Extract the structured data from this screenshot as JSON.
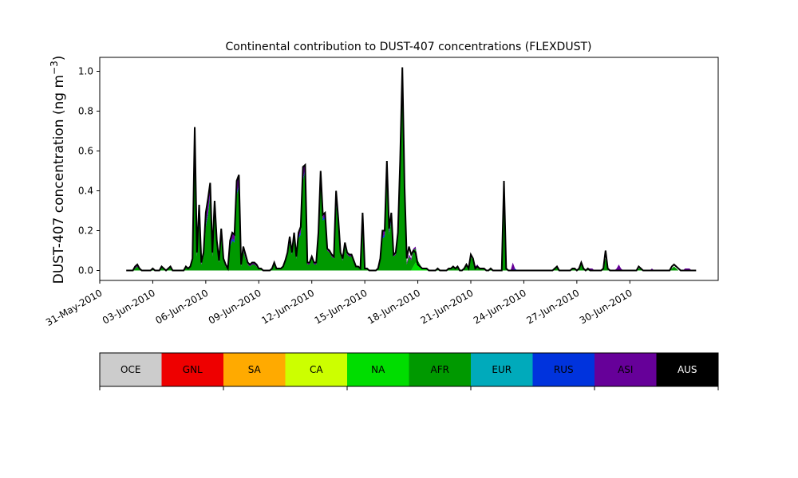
{
  "chart_data": {
    "type": "area",
    "title": "Continental contribution to DUST-407 concentrations (FLEXDUST)",
    "ylabel": "DUST-407 concentration (ng m",
    "ylabel_sup": "−3",
    "ylabel_close": ")",
    "xlabel": "",
    "ylim": [
      -0.05,
      1.07
    ],
    "xlim": [
      "2010-05-31",
      "2010-07-05"
    ],
    "yticks": [
      "0.0",
      "0.2",
      "0.4",
      "0.6",
      "0.8",
      "1.0"
    ],
    "xticks": [
      "31-May-2010",
      "03-Jun-2010",
      "06-Jun-2010",
      "09-Jun-2010",
      "12-Jun-2010",
      "15-Jun-2010",
      "18-Jun-2010",
      "21-Jun-2010",
      "24-Jun-2010",
      "27-Jun-2010",
      "30-Jun-2010"
    ],
    "grid": false,
    "legend_position": "bottom colorbar",
    "x_start": "2010-06-01T12:00",
    "time_step_hours": 3,
    "series": [
      {
        "name": "NA",
        "color": "#00dd00",
        "values": [
          0,
          0,
          0,
          0,
          0,
          0,
          0,
          0,
          0,
          0,
          0,
          0,
          0,
          0,
          0,
          0,
          0,
          0,
          0,
          0,
          0,
          0,
          0,
          0,
          0,
          0,
          0,
          0,
          0,
          0,
          0,
          0,
          0,
          0,
          0,
          0,
          0,
          0,
          0,
          0,
          0,
          0,
          0,
          0,
          0,
          0,
          0,
          0,
          0,
          0,
          0,
          0,
          0,
          0,
          0,
          0,
          0,
          0,
          0,
          0,
          0,
          0,
          0,
          0,
          0,
          0,
          0,
          0,
          0,
          0,
          0,
          0,
          0,
          0,
          0,
          0,
          0,
          0,
          0,
          0,
          0,
          0,
          0,
          0,
          0,
          0,
          0,
          0,
          0,
          0,
          0,
          0,
          0,
          0,
          0,
          0,
          0,
          0,
          0,
          0,
          0,
          0,
          0,
          0,
          0,
          0,
          0,
          0,
          0,
          0,
          0,
          0,
          0,
          0,
          0,
          0,
          0,
          0,
          0,
          0,
          0,
          0,
          0,
          0,
          0,
          0,
          0,
          0,
          0,
          0,
          0.02,
          0.04,
          0.03,
          0.02,
          0.01,
          0.01,
          0.01,
          0,
          0,
          0,
          0,
          0,
          0,
          0,
          0,
          0,
          0,
          0,
          0,
          0,
          0,
          0,
          0,
          0,
          0,
          0,
          0,
          0,
          0,
          0,
          0,
          0,
          0,
          0,
          0,
          0,
          0,
          0,
          0,
          0,
          0,
          0,
          0,
          0,
          0,
          0,
          0,
          0,
          0,
          0,
          0,
          0,
          0,
          0,
          0,
          0,
          0,
          0,
          0,
          0,
          0,
          0,
          0,
          0,
          0,
          0,
          0,
          0,
          0,
          0,
          0,
          0,
          0,
          0,
          0,
          0,
          0,
          0,
          0,
          0,
          0,
          0,
          0,
          0,
          0,
          0,
          0,
          0,
          0,
          0,
          0,
          0,
          0,
          0,
          0,
          0,
          0,
          0,
          0,
          0,
          0,
          0,
          0,
          0,
          0,
          0,
          0,
          0,
          0,
          0,
          0,
          0,
          0,
          0,
          0,
          0,
          0,
          0,
          0,
          0,
          0,
          0,
          0,
          0,
          0,
          0,
          0,
          0,
          0,
          0,
          0,
          0,
          0,
          0,
          0,
          0,
          0
        ]
      },
      {
        "name": "AFR",
        "color": "#009900",
        "values": [
          0,
          0,
          0,
          0,
          0.01,
          0.02,
          0.01,
          0,
          0,
          0,
          0,
          0,
          0.01,
          0,
          0,
          0,
          0.02,
          0.01,
          0,
          0.01,
          0.02,
          0,
          0,
          0,
          0,
          0,
          0,
          0.02,
          0.01,
          0.02,
          0.05,
          0.55,
          0.07,
          0.25,
          0.03,
          0.07,
          0.22,
          0.28,
          0.38,
          0.07,
          0.3,
          0.12,
          0.04,
          0.17,
          0.05,
          0.02,
          0.01,
          0.12,
          0.15,
          0.14,
          0.38,
          0.42,
          0.02,
          0.1,
          0.06,
          0.03,
          0.02,
          0.03,
          0.03,
          0.02,
          0.01,
          0.01,
          0,
          0,
          0,
          0,
          0.01,
          0.03,
          0.01,
          0.01,
          0.01,
          0.02,
          0.04,
          0.08,
          0.14,
          0.08,
          0.16,
          0.06,
          0.16,
          0.18,
          0.45,
          0.5,
          0.03,
          0.03,
          0.06,
          0.03,
          0.03,
          0.15,
          0.46,
          0.25,
          0.26,
          0.1,
          0.09,
          0.07,
          0.06,
          0.35,
          0.22,
          0.08,
          0.05,
          0.12,
          0.08,
          0.07,
          0.07,
          0.04,
          0.02,
          0.02,
          0.01,
          0.26,
          0.01,
          0.01,
          0,
          0,
          0,
          0,
          0.01,
          0.05,
          0.16,
          0.17,
          0.5,
          0.18,
          0.25,
          0.07,
          0.08,
          0.16,
          0.5,
          0.95,
          0.38,
          0.03,
          0.07,
          0.05,
          0.08,
          0.07,
          0.02,
          0.01,
          0,
          0,
          0,
          0,
          0,
          0,
          0,
          0.01,
          0,
          0,
          0,
          0,
          0.01,
          0.01,
          0.02,
          0.01,
          0.02,
          0,
          0,
          0.01,
          0.03,
          0.01,
          0.07,
          0.05,
          0.01,
          0.02,
          0.01,
          0.01,
          0.01,
          0,
          0,
          0.01,
          0,
          0,
          0,
          0,
          0,
          0.4,
          0.01,
          0,
          0,
          0,
          0,
          0,
          0,
          0,
          0,
          0,
          0,
          0,
          0,
          0,
          0,
          0,
          0,
          0,
          0,
          0,
          0,
          0,
          0.01,
          0.02,
          0,
          0,
          0,
          0,
          0,
          0,
          0.01,
          0.01,
          0,
          0.01,
          0.03,
          0.01,
          0,
          0.01,
          0,
          0,
          0,
          0,
          0,
          0,
          0.01,
          0.06,
          0.01,
          0,
          0,
          0,
          0,
          0,
          0,
          0,
          0,
          0,
          0,
          0,
          0,
          0,
          0.01,
          0.01,
          0,
          0,
          0,
          0,
          0,
          0,
          0,
          0,
          0,
          0,
          0,
          0,
          0,
          0.01,
          0.02,
          0.01,
          0,
          0,
          0,
          0,
          0,
          0,
          0,
          0,
          0
        ]
      },
      {
        "name": "RUS",
        "color": "#0033dd",
        "values": [
          0,
          0,
          0,
          0,
          0,
          0,
          0,
          0,
          0,
          0,
          0,
          0,
          0,
          0,
          0,
          0,
          0,
          0,
          0,
          0,
          0,
          0,
          0,
          0,
          0,
          0,
          0,
          0,
          0,
          0,
          0,
          0.02,
          0,
          0.01,
          0,
          0,
          0.01,
          0.01,
          0.01,
          0,
          0.01,
          0,
          0,
          0.01,
          0,
          0,
          0,
          0.01,
          0.01,
          0.01,
          0.01,
          0.01,
          0,
          0,
          0,
          0,
          0,
          0,
          0,
          0,
          0,
          0,
          0,
          0,
          0,
          0,
          0,
          0,
          0,
          0,
          0,
          0,
          0,
          0,
          0.01,
          0,
          0.01,
          0,
          0.01,
          0.01,
          0.01,
          0.01,
          0,
          0,
          0,
          0,
          0,
          0.01,
          0.01,
          0.01,
          0.01,
          0,
          0,
          0,
          0,
          0.01,
          0.01,
          0,
          0,
          0.01,
          0,
          0,
          0,
          0,
          0,
          0,
          0,
          0.01,
          0,
          0,
          0,
          0,
          0,
          0,
          0,
          0,
          0.01,
          0.01,
          0.01,
          0.01,
          0.01,
          0,
          0,
          0.01,
          0.01,
          0.02,
          0.01,
          0,
          0,
          0,
          0,
          0,
          0,
          0,
          0,
          0,
          0,
          0,
          0,
          0,
          0,
          0,
          0,
          0,
          0,
          0,
          0,
          0,
          0,
          0,
          0,
          0,
          0,
          0,
          0,
          0,
          0,
          0,
          0,
          0,
          0,
          0,
          0,
          0,
          0,
          0,
          0,
          0,
          0,
          0,
          0,
          0,
          0,
          0,
          0,
          0,
          0.01,
          0,
          0,
          0,
          0,
          0,
          0,
          0,
          0,
          0,
          0,
          0,
          0,
          0,
          0,
          0,
          0,
          0,
          0,
          0,
          0,
          0,
          0,
          0,
          0,
          0,
          0,
          0,
          0,
          0,
          0,
          0,
          0,
          0,
          0,
          0,
          0,
          0,
          0,
          0,
          0,
          0,
          0,
          0,
          0,
          0,
          0,
          0,
          0,
          0,
          0,
          0,
          0,
          0,
          0,
          0,
          0,
          0,
          0,
          0,
          0,
          0,
          0,
          0,
          0,
          0,
          0,
          0,
          0,
          0,
          0,
          0,
          0,
          0,
          0,
          0,
          0,
          0,
          0,
          0,
          0,
          0,
          0,
          0,
          0,
          0,
          0,
          0,
          0,
          0,
          0,
          0,
          0,
          0,
          0,
          0,
          0,
          0,
          0,
          0
        ]
      },
      {
        "name": "ASI",
        "color": "#660099",
        "values": [
          0,
          0,
          0,
          0,
          0.01,
          0.01,
          0,
          0,
          0,
          0,
          0,
          0,
          0,
          0,
          0,
          0,
          0,
          0,
          0,
          0,
          0,
          0,
          0,
          0,
          0,
          0,
          0,
          0,
          0,
          0,
          0.01,
          0.14,
          0.02,
          0.06,
          0.01,
          0.02,
          0.06,
          0.07,
          0.05,
          0.02,
          0.04,
          0.03,
          0.01,
          0.03,
          0.01,
          0.01,
          0,
          0.02,
          0.03,
          0.03,
          0.06,
          0.05,
          0.01,
          0.02,
          0.02,
          0.01,
          0.01,
          0.01,
          0.01,
          0.01,
          0,
          0,
          0,
          0,
          0,
          0,
          0,
          0.01,
          0,
          0,
          0,
          0,
          0.01,
          0.01,
          0.02,
          0.01,
          0.02,
          0.01,
          0.02,
          0.03,
          0.06,
          0.02,
          0.01,
          0.01,
          0.01,
          0.01,
          0.01,
          0.03,
          0.03,
          0.02,
          0.02,
          0.01,
          0.01,
          0.01,
          0.01,
          0.04,
          0.03,
          0.01,
          0.01,
          0.01,
          0.01,
          0.01,
          0.01,
          0.01,
          0,
          0,
          0,
          0.02,
          0,
          0,
          0,
          0,
          0,
          0,
          0,
          0.01,
          0.03,
          0.02,
          0.04,
          0.02,
          0.03,
          0.01,
          0.01,
          0.02,
          0.04,
          0.05,
          0.03,
          0.01,
          0.01,
          0.01,
          0.01,
          0.01,
          0,
          0,
          0,
          0,
          0,
          0,
          0,
          0,
          0,
          0,
          0,
          0,
          0,
          0,
          0,
          0,
          0,
          0,
          0,
          0,
          0,
          0,
          0,
          0,
          0,
          0,
          0.01,
          0.01,
          0,
          0,
          0,
          0,
          0,
          0,
          0,
          0,
          0,
          0,
          0,
          0,
          0,
          0,
          0,
          0.04,
          0,
          0,
          0,
          0,
          0,
          0,
          0,
          0,
          0,
          0,
          0,
          0,
          0,
          0,
          0,
          0,
          0,
          0,
          0,
          0,
          0,
          0,
          0,
          0,
          0,
          0,
          0,
          0,
          0,
          0,
          0,
          0,
          0,
          0,
          0.01,
          0.01,
          0,
          0,
          0,
          0,
          0,
          0,
          0,
          0,
          0,
          0,
          0.01,
          0.03,
          0.01,
          0,
          0,
          0,
          0,
          0,
          0,
          0,
          0,
          0,
          0,
          0,
          0,
          0,
          0.01,
          0,
          0,
          0,
          0,
          0,
          0,
          0,
          0,
          0,
          0,
          0,
          0,
          0,
          0,
          0.01,
          0.01,
          0.01,
          0,
          0,
          0,
          0,
          0,
          0,
          0,
          0,
          0
        ]
      }
    ],
    "total": [
      0,
      0,
      0,
      0,
      0.02,
      0.03,
      0.01,
      0,
      0,
      0,
      0,
      0,
      0.01,
      0,
      0,
      0,
      0.02,
      0.01,
      0,
      0.01,
      0.02,
      0,
      0,
      0,
      0,
      0,
      0,
      0.02,
      0.01,
      0.02,
      0.06,
      0.72,
      0.09,
      0.33,
      0.04,
      0.09,
      0.29,
      0.36,
      0.44,
      0.09,
      0.35,
      0.15,
      0.05,
      0.21,
      0.06,
      0.03,
      0.01,
      0.15,
      0.19,
      0.18,
      0.45,
      0.48,
      0.03,
      0.12,
      0.08,
      0.04,
      0.03,
      0.04,
      0.04,
      0.03,
      0.01,
      0.01,
      0,
      0,
      0,
      0,
      0.01,
      0.04,
      0.01,
      0.01,
      0.01,
      0.02,
      0.05,
      0.09,
      0.17,
      0.09,
      0.19,
      0.07,
      0.19,
      0.22,
      0.52,
      0.53,
      0.04,
      0.04,
      0.07,
      0.04,
      0.04,
      0.19,
      0.5,
      0.28,
      0.29,
      0.11,
      0.1,
      0.08,
      0.07,
      0.4,
      0.26,
      0.09,
      0.06,
      0.14,
      0.09,
      0.08,
      0.08,
      0.05,
      0.02,
      0.02,
      0.01,
      0.29,
      0.01,
      0.01,
      0,
      0,
      0,
      0,
      0.01,
      0.06,
      0.2,
      0.2,
      0.55,
      0.21,
      0.29,
      0.08,
      0.09,
      0.19,
      0.55,
      1.02,
      0.42,
      0.06,
      0.12,
      0.08,
      0.1,
      0.09,
      0.03,
      0.02,
      0.01,
      0.01,
      0.01,
      0,
      0,
      0,
      0,
      0.01,
      0,
      0,
      0,
      0,
      0.01,
      0.01,
      0.02,
      0.01,
      0.02,
      0,
      0,
      0.01,
      0.03,
      0.01,
      0.08,
      0.06,
      0.01,
      0.02,
      0.01,
      0.01,
      0.01,
      0,
      0,
      0.01,
      0,
      0,
      0,
      0,
      0,
      0.45,
      0.01,
      0,
      0,
      0,
      0,
      0,
      0,
      0,
      0,
      0,
      0,
      0,
      0,
      0,
      0,
      0,
      0,
      0,
      0,
      0,
      0,
      0,
      0.01,
      0.02,
      0,
      0,
      0,
      0,
      0,
      0,
      0.01,
      0.01,
      0,
      0.01,
      0.04,
      0.01,
      0,
      0.01,
      0,
      0,
      0,
      0,
      0,
      0,
      0.01,
      0.1,
      0.01,
      0,
      0,
      0,
      0,
      0,
      0,
      0,
      0,
      0,
      0,
      0,
      0,
      0,
      0.02,
      0.01,
      0,
      0,
      0,
      0,
      0,
      0,
      0,
      0,
      0,
      0,
      0,
      0,
      0,
      0.02,
      0.03,
      0.02,
      0.01,
      0,
      0,
      0,
      0,
      0,
      0,
      0,
      0
    ]
  },
  "legend": [
    {
      "label": "OCE",
      "color": "#cccccc",
      "text_color": "#000000"
    },
    {
      "label": "GNL",
      "color": "#ee0000",
      "text_color": "#000000"
    },
    {
      "label": "SA",
      "color": "#ffaa00",
      "text_color": "#000000"
    },
    {
      "label": "CA",
      "color": "#ccff00",
      "text_color": "#000000"
    },
    {
      "label": "NA",
      "color": "#00dd00",
      "text_color": "#000000"
    },
    {
      "label": "AFR",
      "color": "#009900",
      "text_color": "#000000"
    },
    {
      "label": "EUR",
      "color": "#00aabb",
      "text_color": "#000000"
    },
    {
      "label": "RUS",
      "color": "#0033dd",
      "text_color": "#000000"
    },
    {
      "label": "ASI",
      "color": "#660099",
      "text_color": "#000000"
    },
    {
      "label": "AUS",
      "color": "#000000",
      "text_color": "#ffffff"
    }
  ]
}
